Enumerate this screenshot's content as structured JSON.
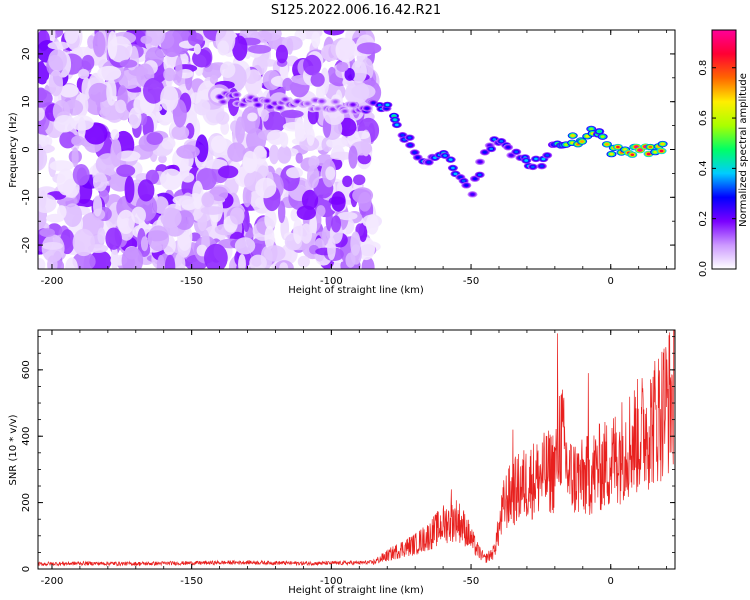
{
  "title": "S125.2022.006.16.42.R21",
  "chart_data": [
    {
      "type": "heatmap",
      "title": "S125.2022.006.16.42.R21",
      "xlabel": "Height of straight line (km)",
      "ylabel": "Frequency (Hz)",
      "xlim": [
        -205,
        23
      ],
      "ylim": [
        -25,
        25
      ],
      "xticks": [
        -200,
        -150,
        -100,
        -50,
        0
      ],
      "xtick_labels": [
        "-200",
        "-150",
        "-100",
        "-50",
        "0"
      ],
      "yticks": [
        -20,
        -10,
        0,
        10,
        20
      ],
      "ytick_labels": [
        "-20",
        "-10",
        "0",
        "10",
        "20"
      ],
      "colorbar": {
        "label": "Normalized spectral amplitude",
        "range": [
          0,
          0.95
        ],
        "ticks": [
          0.0,
          0.2,
          0.4,
          0.6,
          0.8
        ],
        "tick_labels": [
          "0.0",
          "0.2",
          "0.4",
          "0.6",
          "0.8"
        ],
        "colors": [
          "#ffffff",
          "#cc99ff",
          "#7a00ff",
          "#0000ff",
          "#00ccff",
          "#00ff66",
          "#aaff00",
          "#ffee00",
          "#ff6600",
          "#ff0033",
          "#ff0099"
        ]
      },
      "noise_region": {
        "x": [
          -205,
          -85
        ],
        "y": [
          -25,
          25
        ],
        "amplitude": [
          0.02,
          0.2
        ]
      },
      "ridge": [
        {
          "x": -140,
          "y": 11,
          "amp": 0.2
        },
        {
          "x": -125,
          "y": 10,
          "amp": 0.2
        },
        {
          "x": -95,
          "y": 9,
          "amp": 0.15
        },
        {
          "x": -82,
          "y": 9,
          "amp": 0.35
        },
        {
          "x": -78,
          "y": 8,
          "amp": 0.45
        },
        {
          "x": -75,
          "y": 4,
          "amp": 0.3
        },
        {
          "x": -70,
          "y": 0,
          "amp": 0.35
        },
        {
          "x": -65,
          "y": -3,
          "amp": 0.35
        },
        {
          "x": -60,
          "y": -1,
          "amp": 0.4
        },
        {
          "x": -55,
          "y": -5,
          "amp": 0.35
        },
        {
          "x": -50,
          "y": -9,
          "amp": 0.3
        },
        {
          "x": -45,
          "y": 0,
          "amp": 0.3
        },
        {
          "x": -40,
          "y": 2,
          "amp": 0.35
        },
        {
          "x": -35,
          "y": -1,
          "amp": 0.3
        },
        {
          "x": -30,
          "y": -3,
          "amp": 0.35
        },
        {
          "x": -25,
          "y": -3,
          "amp": 0.4
        },
        {
          "x": -20,
          "y": 1,
          "amp": 0.45
        },
        {
          "x": -12,
          "y": 2,
          "amp": 0.8
        },
        {
          "x": -5,
          "y": 4,
          "amp": 0.55
        },
        {
          "x": 0,
          "y": 0,
          "amp": 0.7
        },
        {
          "x": 5,
          "y": -1,
          "amp": 0.85
        },
        {
          "x": 12,
          "y": 0,
          "amp": 0.9
        },
        {
          "x": 20,
          "y": 1,
          "amp": 0.75
        }
      ]
    },
    {
      "type": "line",
      "xlabel": "Height of straight line (km)",
      "ylabel": "SNR (10 * v/v)",
      "xlim": [
        -205,
        23
      ],
      "ylim": [
        0,
        720
      ],
      "xticks": [
        -200,
        -150,
        -100,
        -50,
        0
      ],
      "xtick_labels": [
        "-200",
        "-150",
        "-100",
        "-50",
        "0"
      ],
      "yticks": [
        0,
        200,
        400,
        600
      ],
      "ytick_labels": [
        "0",
        "200",
        "400",
        "600"
      ],
      "color": "#e8201e",
      "x": [
        -205,
        -190,
        -170,
        -150,
        -130,
        -110,
        -95,
        -85,
        -80,
        -75,
        -70,
        -65,
        -60,
        -55,
        -52,
        -48,
        -45,
        -42,
        -40,
        -38,
        -35,
        -30,
        -25,
        -20,
        -18,
        -15,
        -10,
        -5,
        0,
        5,
        10,
        15,
        20,
        23
      ],
      "y": [
        15,
        17,
        16,
        18,
        20,
        17,
        18,
        20,
        40,
        60,
        75,
        100,
        135,
        150,
        120,
        60,
        30,
        50,
        120,
        200,
        230,
        260,
        280,
        300,
        420,
        280,
        270,
        300,
        320,
        370,
        400,
        440,
        500,
        530
      ],
      "spikes": [
        {
          "x": -57,
          "y": 240
        },
        {
          "x": -35,
          "y": 420
        },
        {
          "x": -19,
          "y": 710
        },
        {
          "x": -8,
          "y": 590
        },
        {
          "x": 19,
          "y": 600
        }
      ]
    }
  ]
}
